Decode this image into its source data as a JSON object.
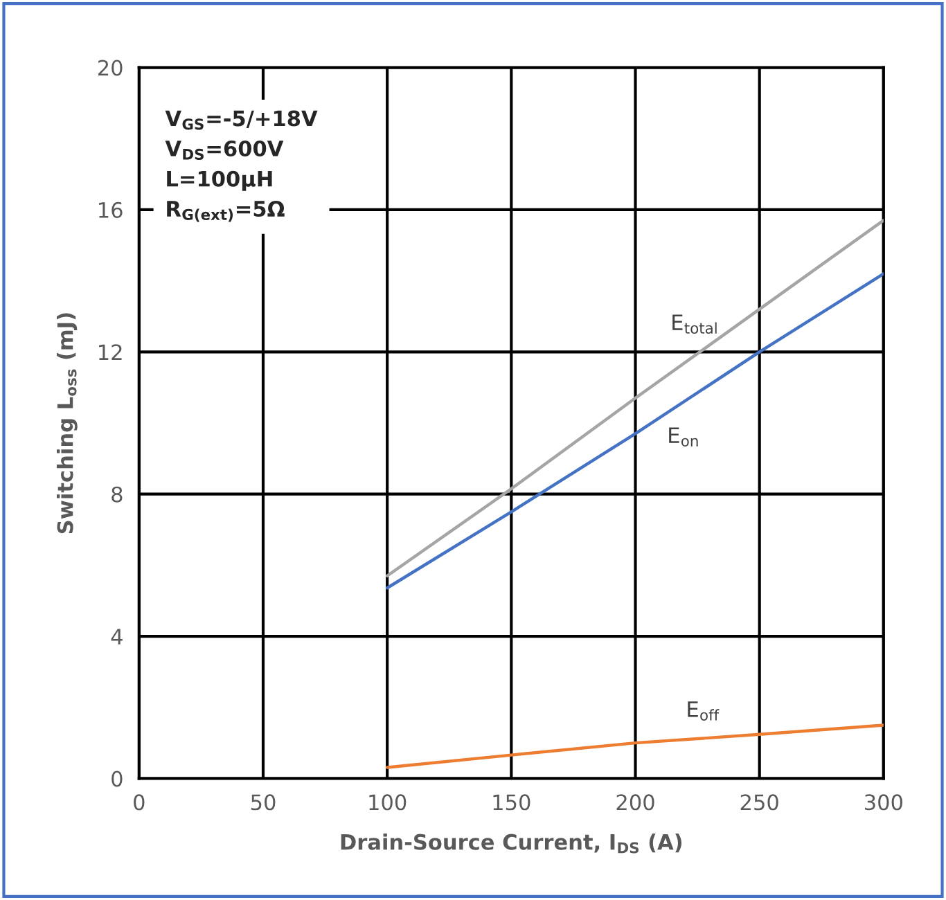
{
  "chart_data": {
    "type": "line",
    "xlabel": "Drain-Source Current, I$_{DS}$ (A)",
    "ylabel": "Switching L$_{oss}$ (mJ)",
    "x": [
      100,
      150,
      200,
      250,
      300
    ],
    "series": [
      {
        "name": "E$_{total}$",
        "color": "#a5a5a5",
        "values": [
          5.7,
          8.15,
          10.7,
          13.2,
          15.7
        ]
      },
      {
        "name": "E$_{on}$",
        "color": "#4472c4",
        "values": [
          5.36,
          7.5,
          9.7,
          12.0,
          14.2
        ]
      },
      {
        "name": "E$_{off}$",
        "color": "#ed7d31",
        "values": [
          0.31,
          0.66,
          1.0,
          1.24,
          1.5
        ]
      }
    ],
    "xlim": [
      0,
      300
    ],
    "xticks": [
      0,
      50,
      100,
      150,
      200,
      250,
      300
    ],
    "ylim": [
      0,
      20
    ],
    "yticks": [
      0,
      4,
      8,
      12,
      16,
      20
    ],
    "grid": true,
    "legend": false,
    "marker": "none",
    "line_style": "solid",
    "annotations": [
      "V$_{GS}$=-5/+18V\nV$_{DS}$=600V\nL=100μH\nR$_{G(ext)}$=5Ω"
    ]
  }
}
